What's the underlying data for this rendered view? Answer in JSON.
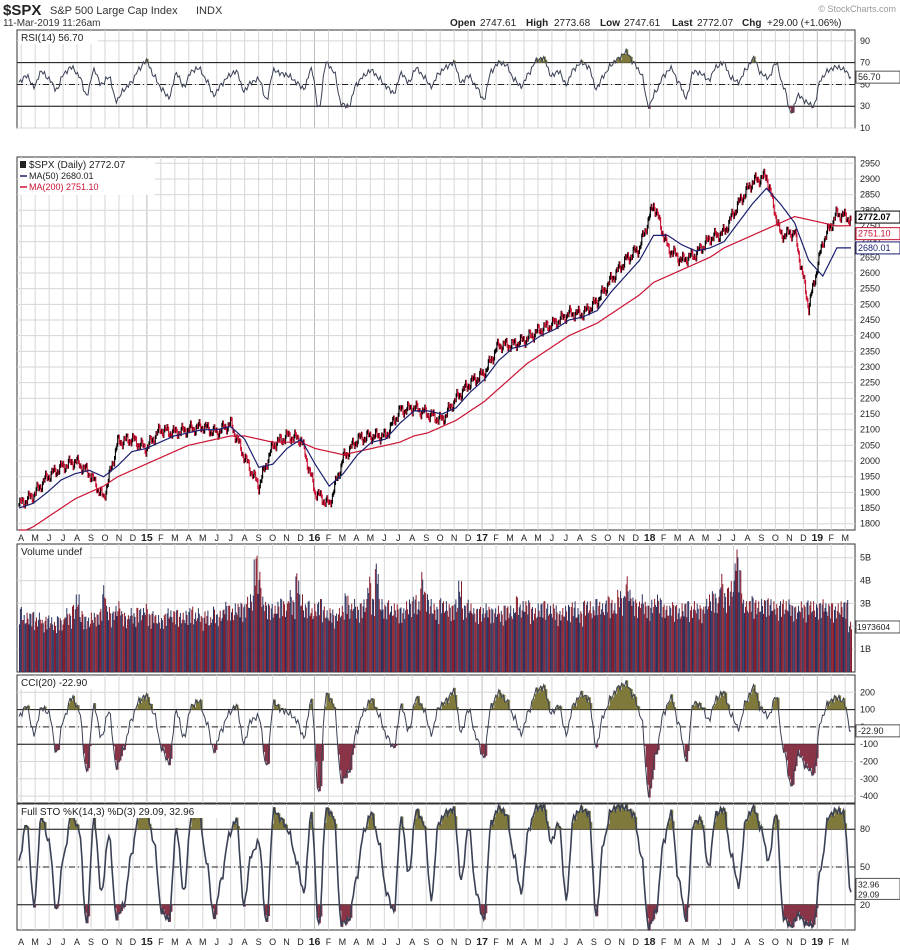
{
  "header": {
    "symbol": "$SPX",
    "name": "S&P 500 Large Cap Index",
    "exchange": "INDX",
    "date": "11-Mar-2019 11:26am",
    "open_label": "Open",
    "open": "2747.61",
    "high_label": "High",
    "high": "2773.68",
    "low_label": "Low",
    "low": "2747.61",
    "last_label": "Last",
    "last": "2772.07",
    "chg_label": "Chg",
    "chg": "+29.00 (+1.06%)",
    "watermark": "© StockCharts.com"
  },
  "colors": {
    "price": "#000000",
    "ma50": "#1a1f6e",
    "ma200": "#cc1133",
    "up_bar": "#2c3360",
    "down_bar": "#8a1d2b",
    "indicator": "#3a4155",
    "overbought_fill": "#7f7a3c",
    "oversold_fill": "#8a3448",
    "grid": "#d6d6d6",
    "border": "#333333"
  },
  "x_axis": {
    "labels": [
      "A",
      "M",
      "J",
      "J",
      "A",
      "S",
      "O",
      "N",
      "D",
      "15",
      "F",
      "M",
      "A",
      "M",
      "J",
      "J",
      "A",
      "S",
      "O",
      "N",
      "D",
      "16",
      "F",
      "M",
      "A",
      "M",
      "J",
      "J",
      "A",
      "S",
      "O",
      "N",
      "D",
      "17",
      "F",
      "M",
      "A",
      "M",
      "J",
      "J",
      "A",
      "S",
      "O",
      "N",
      "D",
      "18",
      "F",
      "M",
      "A",
      "M",
      "J",
      "J",
      "A",
      "S",
      "O",
      "N",
      "D",
      "19",
      "F",
      "M"
    ],
    "year_labels": [
      "15",
      "16",
      "17",
      "18",
      "19"
    ]
  },
  "chart_data": [
    {
      "type": "line",
      "panel": "rsi",
      "label": "RSI(14) 56.70",
      "last_value": "56.70",
      "ylim": [
        10,
        100
      ],
      "yticks": [
        "90",
        "70",
        "50",
        "30",
        "10"
      ],
      "reference_lines": [
        70,
        30
      ],
      "midline": 50,
      "points_per_month": 4,
      "values": [
        52,
        58,
        48,
        62,
        55,
        45,
        60,
        66,
        58,
        40,
        63,
        50,
        57,
        35,
        45,
        52,
        64,
        72,
        58,
        46,
        38,
        60,
        48,
        62,
        65,
        54,
        40,
        50,
        58,
        62,
        44,
        52,
        55,
        36,
        63,
        60,
        58,
        52,
        46,
        64,
        28,
        70,
        62,
        32,
        30,
        50,
        58,
        63,
        56,
        48,
        42,
        60,
        52,
        65,
        57,
        48,
        60,
        66,
        70,
        52,
        58,
        48,
        36,
        62,
        70,
        68,
        55,
        48,
        60,
        72,
        74,
        58,
        62,
        50,
        64,
        70,
        66,
        46,
        58,
        68,
        74,
        80,
        70,
        60,
        30,
        44,
        58,
        65,
        52,
        38,
        62,
        60,
        54,
        66,
        70,
        56,
        52,
        64,
        74,
        60,
        56,
        70,
        48,
        24,
        40,
        34,
        30,
        55,
        63,
        66,
        64,
        57
      ]
    },
    {
      "type": "line",
      "panel": "price",
      "series": [
        {
          "name": "$SPX (Daily) 2772.07",
          "color": "#000000"
        },
        {
          "name": "MA(50) 2680.01",
          "color": "#1a1f6e"
        },
        {
          "name": "MA(200) 2751.10",
          "color": "#cc1133"
        }
      ],
      "ylim": [
        1780,
        2970
      ],
      "yticks": [
        "2950",
        "2900",
        "2850",
        "2800",
        "2750",
        "2700",
        "2650",
        "2600",
        "2550",
        "2500",
        "2450",
        "2400",
        "2350",
        "2300",
        "2250",
        "2200",
        "2150",
        "2100",
        "2050",
        "2000",
        "1950",
        "1900",
        "1850",
        "1800"
      ],
      "last_labels": {
        "price": "2772.07",
        "ma200": "2751.10",
        "ma50": "2680.01"
      },
      "monthly": [
        "Apr 14",
        "May 14",
        "Jun 14",
        "Jul 14",
        "Aug 14",
        "Sep 14",
        "Oct 14",
        "Nov 14",
        "Dec 14",
        "Jan 15",
        "Feb 15",
        "Mar 15",
        "Apr 15",
        "May 15",
        "Jun 15",
        "Jul 15",
        "Aug 15",
        "Sep 15",
        "Oct 15",
        "Nov 15",
        "Dec 15",
        "Jan 16",
        "Feb 16",
        "Mar 16",
        "Apr 16",
        "May 16",
        "Jun 16",
        "Jul 16",
        "Aug 16",
        "Sep 16",
        "Oct 16",
        "Nov 16",
        "Dec 16",
        "Jan 17",
        "Feb 17",
        "Mar 17",
        "Apr 17",
        "May 17",
        "Jun 17",
        "Jul 17",
        "Aug 17",
        "Sep 17",
        "Oct 17",
        "Nov 17",
        "Dec 17",
        "Jan 18",
        "Feb 18",
        "Mar 18",
        "Apr 18",
        "May 18",
        "Jun 18",
        "Jul 18",
        "Aug 18",
        "Sep 18",
        "Oct 18",
        "Nov 18",
        "Dec 18",
        "Jan 19",
        "Feb 19",
        "Mar 19"
      ],
      "close": [
        1860,
        1890,
        1950,
        1980,
        2000,
        1960,
        1880,
        2060,
        2070,
        2040,
        2100,
        2090,
        2100,
        2110,
        2090,
        2120,
        2010,
        1920,
        2050,
        2080,
        2070,
        1900,
        1860,
        2010,
        2070,
        2080,
        2080,
        2160,
        2170,
        2150,
        2130,
        2200,
        2250,
        2280,
        2370,
        2370,
        2390,
        2420,
        2440,
        2470,
        2470,
        2510,
        2580,
        2640,
        2680,
        2820,
        2680,
        2640,
        2660,
        2710,
        2730,
        2820,
        2890,
        2910,
        2720,
        2730,
        2490,
        2700,
        2790,
        2772
      ],
      "ma50": [
        1850,
        1865,
        1900,
        1940,
        1960,
        1970,
        1950,
        1985,
        2030,
        2040,
        2060,
        2080,
        2090,
        2100,
        2100,
        2110,
        2070,
        1980,
        1990,
        2040,
        2070,
        1990,
        1920,
        1960,
        2020,
        2060,
        2070,
        2120,
        2160,
        2160,
        2150,
        2170,
        2220,
        2260,
        2320,
        2360,
        2370,
        2400,
        2420,
        2450,
        2460,
        2480,
        2540,
        2590,
        2640,
        2720,
        2720,
        2690,
        2670,
        2680,
        2700,
        2760,
        2820,
        2870,
        2820,
        2760,
        2640,
        2590,
        2680,
        2680
      ],
      "ma200": [
        1770,
        1790,
        1820,
        1850,
        1880,
        1900,
        1920,
        1950,
        1970,
        1990,
        2010,
        2030,
        2050,
        2060,
        2070,
        2080,
        2080,
        2070,
        2060,
        2060,
        2060,
        2040,
        2030,
        2020,
        2030,
        2040,
        2050,
        2060,
        2080,
        2090,
        2110,
        2130,
        2160,
        2190,
        2230,
        2270,
        2310,
        2340,
        2370,
        2400,
        2420,
        2440,
        2470,
        2500,
        2530,
        2570,
        2590,
        2610,
        2630,
        2650,
        2680,
        2700,
        2720,
        2740,
        2760,
        2780,
        2770,
        2760,
        2750,
        2751
      ]
    },
    {
      "type": "bar",
      "panel": "volume",
      "label": "Volume undef",
      "last_value": "1973604",
      "ylim": [
        0,
        5.6
      ],
      "yticks": [
        "5B",
        "4B",
        "3B",
        "2B",
        "1B"
      ],
      "points_per_month": 4,
      "values": [
        2.9,
        2.5,
        2.6,
        2.7,
        2.4,
        2.6,
        2.3,
        2.5,
        2.4,
        2.2,
        2.5,
        2.3,
        2.8,
        2.6,
        3.0,
        3.4,
        2.7,
        2.5,
        2.4,
        2.6,
        2.6,
        2.8,
        3.8,
        2.9,
        2.7,
        2.9,
        3.1,
        2.7,
        2.5,
        2.8,
        2.6,
        2.9,
        2.8,
        3.0,
        2.6,
        2.7,
        2.5,
        2.4,
        2.6,
        2.8,
        2.7,
        2.8,
        2.6,
        2.6,
        2.7,
        2.9,
        2.6,
        2.8,
        2.5,
        2.7,
        2.4,
        2.9,
        2.6,
        2.7,
        3.1,
        3.0,
        2.8,
        3.0,
        3.1,
        3.0,
        3.3,
        3.4,
        5.2,
        4.4,
        3.3,
        3.1,
        3.0,
        2.9,
        3.1,
        3.3,
        3.0,
        3.6,
        3.2,
        4.4,
        3.4,
        3.0,
        3.2,
        2.8,
        3.0,
        3.3,
        2.9,
        2.7,
        2.8,
        2.6,
        2.8,
        2.9,
        3.5,
        3.0,
        3.2,
        2.9,
        3.1,
        3.2,
        4.2,
        3.3,
        4.8,
        3.2,
        3.0,
        3.2,
        2.9,
        3.0,
        2.9,
        2.8,
        3.1,
        3.2,
        3.4,
        3.1,
        4.4,
        3.6,
        3.2,
        3.0,
        2.9,
        3.3,
        3.1,
        3.0,
        3.0,
        3.2,
        4.0,
        3.0,
        3.2,
        3.0,
        2.8,
        2.9,
        2.8,
        3.0,
        2.9,
        2.8,
        2.9,
        2.7,
        3.0,
        2.9,
        2.8,
        3.4,
        3.0,
        3.1,
        3.2,
        2.9,
        2.8,
        3.0,
        3.2,
        3.0,
        2.9,
        3.0,
        2.7,
        2.8,
        2.9,
        3.0,
        3.1,
        2.8,
        2.7,
        3.2,
        3.1,
        2.9,
        3.3,
        3.1,
        3.0,
        3.4,
        3.2,
        3.0,
        3.6,
        3.4,
        4.2,
        3.6,
        3.3,
        3.1,
        3.4,
        3.1,
        3.0,
        3.2,
        3.4,
        3.3,
        3.0,
        2.9,
        3.1,
        3.0,
        2.8,
        3.0,
        3.2,
        2.9,
        3.1,
        3.0,
        2.9,
        3.2,
        3.4,
        3.6,
        3.3,
        4.3,
        3.5,
        3.8,
        4.0,
        5.4,
        4.6,
        3.2,
        3.1,
        3.4,
        3.2,
        3.1,
        3.2,
        3.3,
        3.2,
        3.1,
        3.0,
        3.2,
        3.1,
        3.2,
        3.0,
        2.9,
        3.1,
        3.0,
        3.2,
        3.1,
        3.0,
        3.1,
        3.2,
        3.0,
        3.1,
        2.9,
        3.0,
        3.1,
        3.2,
        2.2
      ]
    },
    {
      "type": "line",
      "panel": "cci",
      "label": "CCI(20) -22.90",
      "last_value": "-22.90",
      "ylim": [
        -440,
        300
      ],
      "yticks": [
        "200",
        "100",
        "0",
        "-100",
        "-200",
        "-300",
        "-400"
      ],
      "reference_lines": [
        100,
        -100
      ],
      "midline": 0,
      "points_per_month": 4,
      "values": [
        60,
        120,
        -40,
        110,
        80,
        -150,
        50,
        170,
        100,
        -260,
        120,
        -60,
        90,
        -230,
        -120,
        40,
        150,
        180,
        80,
        -120,
        -210,
        90,
        -60,
        120,
        150,
        30,
        -140,
        -20,
        80,
        120,
        -90,
        40,
        60,
        -230,
        140,
        100,
        80,
        40,
        -60,
        150,
        -390,
        190,
        130,
        -310,
        -260,
        -30,
        90,
        160,
        70,
        -50,
        -120,
        120,
        -20,
        170,
        100,
        -40,
        110,
        150,
        210,
        -30,
        100,
        -60,
        -180,
        120,
        200,
        150,
        60,
        -40,
        90,
        210,
        230,
        80,
        120,
        -40,
        130,
        190,
        160,
        -110,
        70,
        170,
        230,
        250,
        180,
        60,
        -390,
        -150,
        80,
        170,
        20,
        -190,
        140,
        120,
        40,
        160,
        200,
        70,
        -10,
        150,
        230,
        100,
        60,
        180,
        -130,
        -340,
        -150,
        -230,
        -270,
        40,
        140,
        170,
        150,
        -23
      ]
    },
    {
      "type": "line",
      "panel": "sto",
      "label": "Full STO %K(14,3) %D(3) 29.09, 32.96",
      "k_value": "29.09",
      "d_value": "32.96",
      "ylim": [
        0,
        100
      ],
      "yticks": [
        "80",
        "50",
        "20"
      ],
      "reference_lines": [
        80,
        20
      ],
      "midline": 50,
      "points_per_month": 4,
      "values": [
        55,
        85,
        20,
        90,
        70,
        15,
        60,
        92,
        80,
        5,
        88,
        30,
        75,
        10,
        20,
        60,
        92,
        95,
        70,
        15,
        8,
        80,
        30,
        90,
        93,
        55,
        10,
        40,
        75,
        88,
        20,
        60,
        70,
        5,
        95,
        88,
        78,
        55,
        30,
        92,
        3,
        96,
        90,
        5,
        8,
        40,
        78,
        93,
        70,
        30,
        15,
        88,
        45,
        95,
        85,
        25,
        85,
        93,
        96,
        40,
        82,
        30,
        8,
        85,
        97,
        92,
        60,
        30,
        80,
        97,
        98,
        70,
        85,
        25,
        90,
        96,
        93,
        12,
        70,
        95,
        98,
        97,
        92,
        60,
        2,
        15,
        70,
        93,
        40,
        8,
        85,
        88,
        50,
        92,
        96,
        60,
        35,
        88,
        97,
        80,
        55,
        93,
        10,
        3,
        12,
        5,
        4,
        50,
        90,
        95,
        93,
        30
      ]
    }
  ]
}
